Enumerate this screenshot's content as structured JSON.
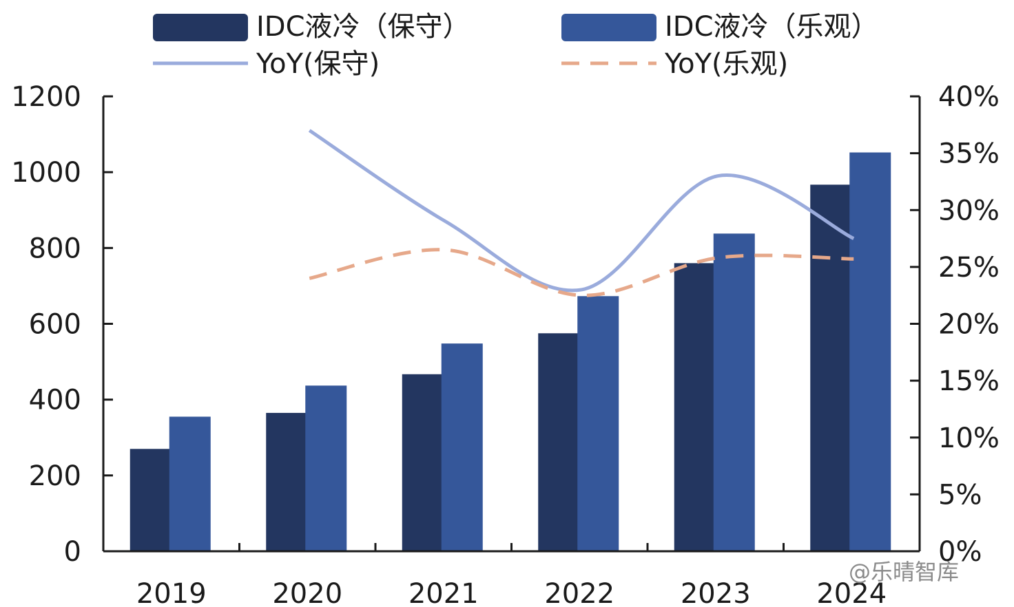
{
  "chart_data": {
    "type": "bar",
    "categories": [
      "2019",
      "2020",
      "2021",
      "2022",
      "2023",
      "2024"
    ],
    "series": [
      {
        "name": "IDC液冷（保守）",
        "kind": "bar",
        "axis": "left",
        "color": "#233660",
        "values": [
          270,
          365,
          467,
          575,
          760,
          967
        ]
      },
      {
        "name": "IDC液冷（乐观）",
        "kind": "bar",
        "axis": "left",
        "color": "#35579a",
        "values": [
          355,
          437,
          548,
          673,
          838,
          1052
        ]
      },
      {
        "name": "YoY(保守)",
        "kind": "line",
        "axis": "right",
        "color": "#9aabdc",
        "dash": "solid",
        "values": [
          null,
          37,
          29,
          23,
          33,
          27.5
        ]
      },
      {
        "name": "YoY(乐观)",
        "kind": "line",
        "axis": "right",
        "color": "#e6a88a",
        "dash": "dashed",
        "values": [
          null,
          24,
          26.5,
          22.5,
          25.8,
          25.7
        ]
      }
    ],
    "y_left": {
      "min": 0,
      "max": 1200,
      "ticks": [
        "0",
        "200",
        "400",
        "600",
        "800",
        "1000",
        "1200"
      ]
    },
    "y_right": {
      "min": 0,
      "max": 40,
      "ticks": [
        "0%",
        "5%",
        "10%",
        "15%",
        "20%",
        "25%",
        "30%",
        "35%",
        "40%"
      ]
    },
    "title": "",
    "xlabel": "",
    "ylabel": "",
    "legend_position": "top"
  },
  "watermark": {
    "text": "@乐晴智库"
  }
}
